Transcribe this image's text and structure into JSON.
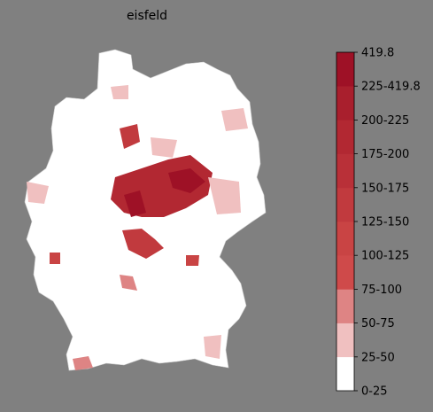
{
  "title": "eisfeld",
  "colorbar": {
    "ticks": [
      "0-25",
      "25-50",
      "50-75",
      "75-100",
      "100-125",
      "125-150",
      "150-175",
      "175-200",
      "200-225",
      "225-419.8",
      "419.8"
    ],
    "colors": [
      "#ffffff",
      "#f0c0c0",
      "#de8484",
      "#cf4a4a",
      "#c94444",
      "#c13a3e",
      "#b93038",
      "#b22832",
      "#a91f2d",
      "#9e1126"
    ]
  }
}
